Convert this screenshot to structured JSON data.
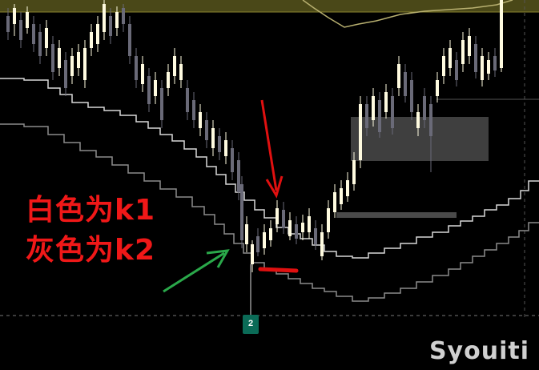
{
  "annotations": {
    "line1": "白色为k1",
    "line2": "灰色为k2",
    "marker_number": "2",
    "watermark": "Syouiti"
  },
  "colors": {
    "background": "#000000",
    "label": "#f01818",
    "upper_band": "#5a5620",
    "k1_line": "#d0d0d0",
    "k2_line": "#8a8a8a",
    "candle_up": "#fffbe0",
    "candle_down": "#6a6a78",
    "red_arrow": "#e01010",
    "green_arrow": "#2aa84a",
    "zone": "#4a4a4a",
    "marker": "#0b6b57"
  },
  "icons": [
    "red-arrow-icon",
    "green-arrow-icon",
    "red-underline-mark",
    "price-marker-icon"
  ]
}
